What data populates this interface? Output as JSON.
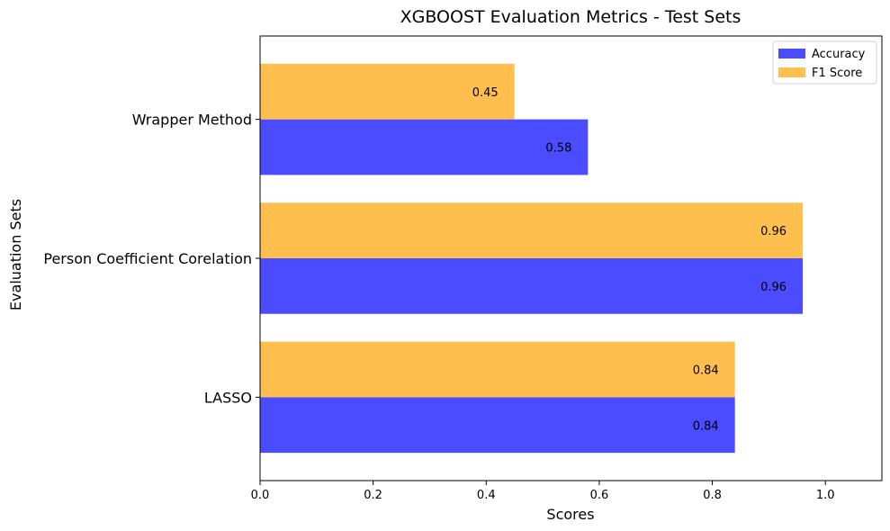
{
  "chart_data": {
    "type": "bar",
    "orientation": "horizontal",
    "title": "XGBOOST Evaluation Metrics - Test Sets",
    "xlabel": "Scores",
    "ylabel": "Evaluation Sets",
    "categories": [
      "LASSO",
      "Person Coefficient Corelation ",
      "Wrapper Method"
    ],
    "series": [
      {
        "name": "Accuracy",
        "values": [
          0.84,
          0.96,
          0.58
        ],
        "labels": [
          "0.84",
          "0.96",
          "0.58"
        ],
        "color": "#4b4bff"
      },
      {
        "name": "F1 Score",
        "values": [
          0.84,
          0.96,
          0.45
        ],
        "labels": [
          "0.84",
          "0.96",
          "0.45"
        ],
        "color": "#ffbf4e"
      }
    ],
    "xlim": [
      0.0,
      1.1
    ],
    "xticks": [
      0.0,
      0.2,
      0.4,
      0.6,
      0.8,
      1.0
    ],
    "xtick_labels": [
      "0.0",
      "0.2",
      "0.4",
      "0.6",
      "0.8",
      "1.0"
    ],
    "grid": false,
    "legend_position": "top-right"
  }
}
